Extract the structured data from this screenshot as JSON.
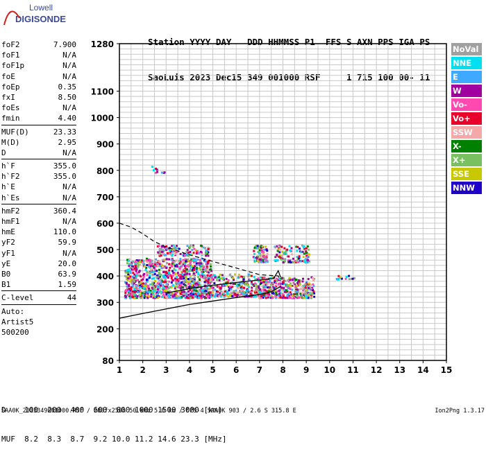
{
  "logo": {
    "line1": "Lowell",
    "line2": "DIGISONDE"
  },
  "header": {
    "row1": "Station YYYY DAY   DDD HHMMSS P1  FFS S AXN PPS IGA PS",
    "row2": "SaoLuis 2023 Dec15 349 001000 RSF     1 715 100 00- 11"
  },
  "params": {
    "group1": [
      {
        "label": "foF2",
        "value": "7.900"
      },
      {
        "label": "foF1",
        "value": "N/A"
      },
      {
        "label": "foF1p",
        "value": "N/A"
      },
      {
        "label": "foE",
        "value": "N/A"
      },
      {
        "label": "foEp",
        "value": "0.35"
      },
      {
        "label": "fxI",
        "value": "8.50"
      },
      {
        "label": "foEs",
        "value": "N/A"
      },
      {
        "label": "fmin",
        "value": "4.40"
      }
    ],
    "group2": [
      {
        "label": "MUF(D)",
        "value": "23.33"
      },
      {
        "label": "M(D)",
        "value": "2.95"
      },
      {
        "label": "D",
        "value": "N/A"
      }
    ],
    "group3": [
      {
        "label": "h`F",
        "value": "355.0"
      },
      {
        "label": "h`F2",
        "value": "355.0"
      },
      {
        "label": "h`E",
        "value": "N/A"
      },
      {
        "label": "h`Es",
        "value": "N/A"
      }
    ],
    "group4": [
      {
        "label": "hmF2",
        "value": "360.4"
      },
      {
        "label": "hmF1",
        "value": "N/A"
      },
      {
        "label": "hmE",
        "value": "110.0"
      },
      {
        "label": "yF2",
        "value": "59.9"
      },
      {
        "label": "yF1",
        "value": "N/A"
      },
      {
        "label": "yE",
        "value": "20.0"
      },
      {
        "label": "B0",
        "value": "63.9"
      },
      {
        "label": "B1",
        "value": "1.59"
      }
    ],
    "group5": [
      {
        "label": "C-level",
        "value": "44"
      }
    ],
    "auto_lines": [
      "Auto:",
      "Artist5",
      "500200"
    ]
  },
  "legend": [
    {
      "label": "NoVal",
      "color": "#a0a0a0"
    },
    {
      "label": "NNE",
      "color": "#00e0f0"
    },
    {
      "label": "E",
      "color": "#3fa8ff"
    },
    {
      "label": "W",
      "color": "#a000a0"
    },
    {
      "label": "Vo-",
      "color": "#ff48b0"
    },
    {
      "label": "Vo+",
      "color": "#e8002a"
    },
    {
      "label": "SSW",
      "color": "#f4a8a8"
    },
    {
      "label": "X-",
      "color": "#008000"
    },
    {
      "label": "X+",
      "color": "#78c060"
    },
    {
      "label": "SSE",
      "color": "#c8c800"
    },
    {
      "label": "NNW",
      "color": "#2000c8"
    }
  ],
  "footer": {
    "d_row": "D    100  200  400  600  800 1000 1500 3000 [km]",
    "muf_row": "MUF  8.2  8.3  8.7  9.2 10.0 11.2 14.6 23.3 [MHz]",
    "info": "SAA0K_2023349001000.RSF / 280fx256h 50 kHz 5.0 km / DPS-4 SAA0K 903 / 2.6 S 315.8 E",
    "version": "Ion2Png 1.3.17"
  },
  "chart_data": {
    "type": "scatter",
    "xlim": [
      1,
      15
    ],
    "ylim": [
      80,
      1280
    ],
    "x_ticks": [
      "1",
      "2",
      "3",
      "4",
      "5",
      "6",
      "7",
      "8",
      "9",
      "10",
      "11",
      "12",
      "13",
      "14",
      "15"
    ],
    "y_ticks": [
      {
        "value": 80,
        "label": "80"
      },
      {
        "value": 200,
        "label": "200"
      },
      {
        "value": 300,
        "label": "300"
      },
      {
        "value": 400,
        "label": "400"
      },
      {
        "value": 500,
        "label": "500"
      },
      {
        "value": 600,
        "label": "600"
      },
      {
        "value": 700,
        "label": "700"
      },
      {
        "value": 800,
        "label": "800"
      },
      {
        "value": 900,
        "label": "900"
      },
      {
        "value": 1000,
        "label": "1000"
      },
      {
        "value": 1100,
        "label": "1100"
      },
      {
        "value": 1280,
        "label": "1280"
      }
    ],
    "grid": true,
    "echo_clusters": [
      {
        "x0": 1.2,
        "x1": 4.9,
        "y0": 320,
        "y1": 470,
        "n": 1100
      },
      {
        "x0": 4.8,
        "x1": 6.9,
        "y0": 325,
        "y1": 410,
        "n": 260
      },
      {
        "x0": 6.9,
        "x1": 9.3,
        "y0": 320,
        "y1": 400,
        "n": 380
      },
      {
        "x0": 2.6,
        "x1": 4.8,
        "y0": 480,
        "y1": 520,
        "n": 120
      },
      {
        "x0": 6.7,
        "x1": 7.3,
        "y0": 455,
        "y1": 520,
        "n": 90
      },
      {
        "x0": 7.6,
        "x1": 9.1,
        "y0": 455,
        "y1": 520,
        "n": 120
      },
      {
        "x0": 2.3,
        "x1": 2.9,
        "y0": 780,
        "y1": 820,
        "n": 10
      },
      {
        "x0": 10.2,
        "x1": 11.1,
        "y0": 390,
        "y1": 405,
        "n": 15
      }
    ],
    "profile_curve": [
      [
        1.0,
        240
      ],
      [
        2.0,
        258
      ],
      [
        3.0,
        275
      ],
      [
        4.0,
        292
      ],
      [
        5.0,
        305
      ],
      [
        6.0,
        318
      ],
      [
        6.5,
        324
      ],
      [
        7.0,
        330
      ],
      [
        7.5,
        340
      ],
      [
        7.9,
        360
      ]
    ],
    "virtual_height_trace": [
      [
        3.0,
        335
      ],
      [
        4.0,
        352
      ],
      [
        5.0,
        365
      ],
      [
        6.0,
        375
      ],
      [
        7.0,
        385
      ],
      [
        7.6,
        390
      ],
      [
        7.8,
        420
      ],
      [
        7.9,
        395
      ]
    ],
    "dashed_trace": [
      [
        1.0,
        600
      ],
      [
        1.5,
        585
      ],
      [
        2.0,
        560
      ],
      [
        2.5,
        530
      ],
      [
        3.0,
        510
      ],
      [
        4.0,
        480
      ],
      [
        5.0,
        455
      ],
      [
        6.0,
        430
      ],
      [
        7.0,
        405
      ],
      [
        7.8,
        400
      ],
      [
        7.9,
        380
      ]
    ]
  }
}
